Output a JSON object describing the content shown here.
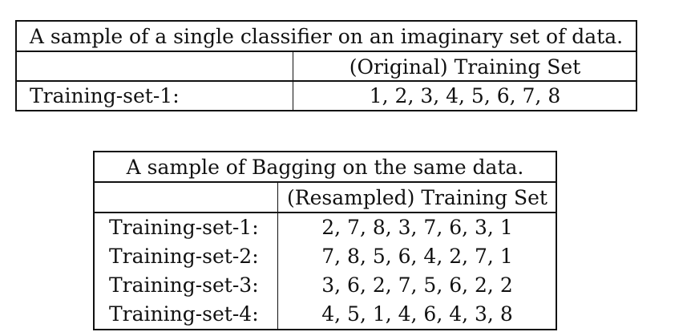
{
  "table1": {
    "title": "A sample of a single classifier on an imaginary set of data.",
    "header": "(Original) Training Set",
    "rows": [
      {
        "label": "Training-set-1:",
        "value": "1, 2, 3, 4, 5, 6, 7, 8"
      }
    ]
  },
  "table2": {
    "title": "A sample of Bagging on the same data.",
    "header": "(Resampled) Training Set",
    "rows": [
      {
        "label": "Training-set-1:",
        "value": "2, 7, 8, 3, 7, 6, 3, 1"
      },
      {
        "label": "Training-set-2:",
        "value": "7, 8, 5, 6, 4, 2, 7, 1"
      },
      {
        "label": "Training-set-3:",
        "value": "3, 6, 2, 7, 5, 6, 2, 2"
      },
      {
        "label": "Training-set-4:",
        "value": "4, 5, 1, 4, 6, 4, 3, 8"
      }
    ]
  }
}
